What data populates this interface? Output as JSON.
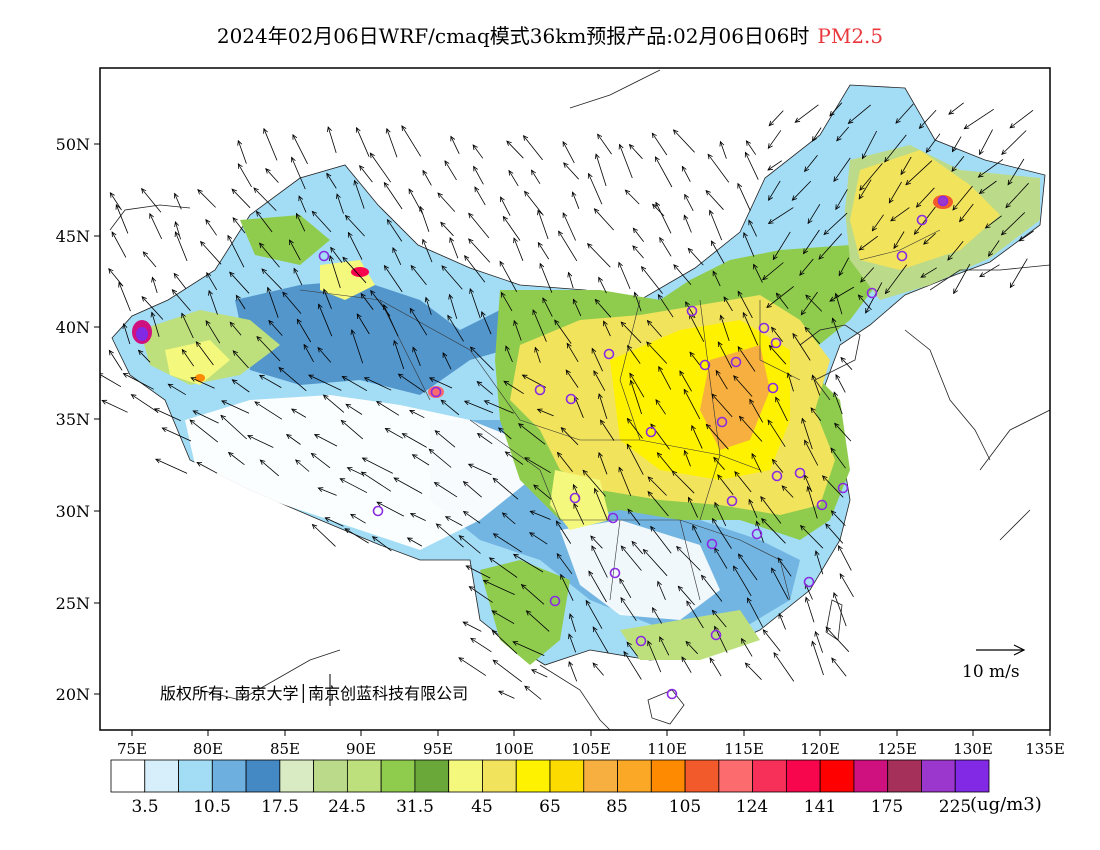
{
  "title": {
    "main": "2024年02月06日WRF/cmaq模式36km预报产品:02月06日06时",
    "pollutant": "PM2.5"
  },
  "map": {
    "lat_labels": [
      "50N",
      "45N",
      "40N",
      "35N",
      "30N",
      "25N",
      "20N"
    ],
    "lon_labels": [
      "75E",
      "80E",
      "85E",
      "90E",
      "95E",
      "100E",
      "105E",
      "110E",
      "115E",
      "120E",
      "125E",
      "130E",
      "135E"
    ],
    "copyright": "版权所有: 南京大学│南京创蓝科技有限公司",
    "wind_scale_label": "10 m/s"
  },
  "colorbar": {
    "colors": [
      "#ffffff",
      "#d6effa",
      "#a3dcf5",
      "#6db0e0",
      "#4589c4",
      "#d9ebc2",
      "#bcdb8a",
      "#bde07d",
      "#8fcc4e",
      "#6aa839",
      "#f4f87d",
      "#f2e35c",
      "#fff200",
      "#fcdc00",
      "#f7b03f",
      "#fba827",
      "#fd8a00",
      "#f25a2b",
      "#fc6b6e",
      "#f7305a",
      "#f7064e",
      "#ff0000",
      "#cf1180",
      "#a5315a",
      "#9b37cc",
      "#8229e5"
    ],
    "labels": [
      "3.5",
      "10.5",
      "17.5",
      "24.5",
      "31.5",
      "45",
      "65",
      "85",
      "105",
      "124",
      "141",
      "175",
      "225"
    ],
    "unit": "(ug/m3)"
  }
}
